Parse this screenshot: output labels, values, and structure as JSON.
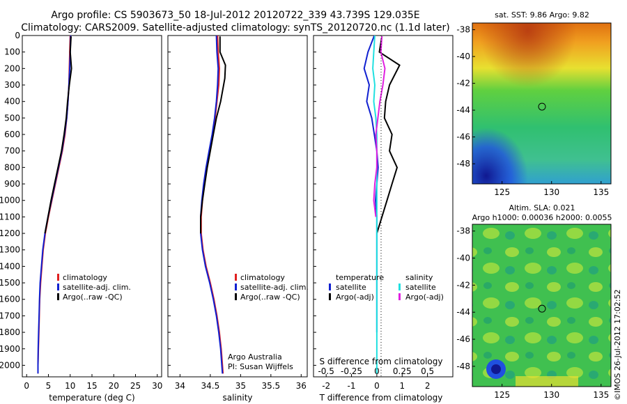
{
  "header": {
    "line1": "Argo profile: CS 5903673_50 18-Jul-2012 20120722_339 43.739S 129.035E",
    "line2": "Climatology: CARS2009. Satellite-adjusted climatology: synTS_20120720.nc (1.1d later)"
  },
  "colors": {
    "climatology": "#e02020",
    "satellite": "#1020d0",
    "argo": "#000000",
    "t_satellite": "#1020d0",
    "t_argo": "#000000",
    "s_satellite": "#20e0e0",
    "s_argo": "#e020e0"
  },
  "chart_data": [
    {
      "type": "line",
      "name": "temperature-profile",
      "xlabel": "temperature (deg C)",
      "ylabel": "",
      "xlim": [
        -1,
        31
      ],
      "ylim": [
        2070,
        0
      ],
      "xticks": [
        0,
        5,
        10,
        15,
        20,
        25,
        30
      ],
      "yticks": [
        0,
        100,
        200,
        300,
        400,
        500,
        600,
        700,
        800,
        900,
        1000,
        1100,
        1200,
        1300,
        1400,
        1500,
        1600,
        1700,
        1800,
        1900,
        2000
      ],
      "legend": [
        "climatology",
        "satellite-adj. clim.",
        "Argo(..raw -QC)"
      ],
      "series": [
        {
          "name": "climatology",
          "color_key": "climatology",
          "x": [
            10.0,
            9.9,
            9.8,
            9.7,
            9.5,
            9.2,
            8.8,
            8.2,
            7.4,
            6.6,
            5.8,
            5.0,
            4.3,
            3.8,
            3.5,
            3.2,
            3.0,
            2.9,
            2.8,
            2.7,
            2.6,
            2.6
          ],
          "y": [
            0,
            100,
            200,
            300,
            400,
            500,
            600,
            700,
            800,
            900,
            1000,
            1100,
            1200,
            1300,
            1400,
            1500,
            1600,
            1700,
            1800,
            1900,
            2000,
            2050
          ]
        },
        {
          "name": "satellite-adj. clim.",
          "color_key": "satellite",
          "x": [
            10.1,
            10.0,
            9.9,
            9.7,
            9.5,
            9.2,
            8.7,
            8.1,
            7.3,
            6.5,
            5.7,
            4.9,
            4.2,
            3.7,
            3.4,
            3.1,
            2.95,
            2.85,
            2.75,
            2.65,
            2.6,
            2.6
          ],
          "y": [
            0,
            100,
            200,
            300,
            400,
            500,
            600,
            700,
            800,
            900,
            1000,
            1100,
            1200,
            1300,
            1400,
            1500,
            1600,
            1700,
            1800,
            1900,
            2000,
            2050
          ]
        },
        {
          "name": "Argo(..raw -QC)",
          "color_key": "argo",
          "x": [
            10.2,
            10.0,
            10.3,
            9.8,
            9.4,
            9.1,
            8.6,
            8.0,
            7.2,
            6.4,
            5.6,
            4.9,
            4.2
          ],
          "y": [
            5,
            100,
            200,
            300,
            400,
            500,
            600,
            700,
            800,
            900,
            1000,
            1100,
            1200
          ]
        }
      ]
    },
    {
      "type": "line",
      "name": "salinity-profile",
      "xlabel": "salinity",
      "ylabel": "",
      "xlim": [
        33.8,
        36.1
      ],
      "ylim": [
        2070,
        0
      ],
      "xticks": [
        34,
        34.5,
        35,
        35.5,
        36
      ],
      "legend": [
        "climatology",
        "satellite-adj. clim.",
        "Argo(..raw -QC)"
      ],
      "annotation": [
        "Argo Australia",
        "PI: Susan Wijffels"
      ],
      "series": [
        {
          "name": "climatology",
          "color_key": "climatology",
          "x": [
            34.62,
            34.63,
            34.65,
            34.64,
            34.61,
            34.58,
            34.54,
            34.49,
            34.44,
            34.4,
            34.37,
            34.35,
            34.35,
            34.38,
            34.43,
            34.5,
            34.56,
            34.61,
            34.65,
            34.68,
            34.7,
            34.71
          ],
          "y": [
            0,
            100,
            200,
            300,
            400,
            500,
            600,
            700,
            800,
            900,
            1000,
            1100,
            1200,
            1300,
            1400,
            1500,
            1600,
            1700,
            1800,
            1900,
            2000,
            2050
          ]
        },
        {
          "name": "satellite-adj. clim.",
          "color_key": "satellite",
          "x": [
            34.6,
            34.61,
            34.63,
            34.62,
            34.6,
            34.57,
            34.53,
            34.48,
            34.43,
            34.39,
            34.36,
            34.34,
            34.34,
            34.37,
            34.42,
            34.49,
            34.55,
            34.6,
            34.64,
            34.67,
            34.69,
            34.7
          ],
          "y": [
            0,
            100,
            200,
            300,
            400,
            500,
            600,
            700,
            800,
            900,
            1000,
            1100,
            1200,
            1300,
            1400,
            1500,
            1600,
            1700,
            1800,
            1900,
            2000,
            2050
          ]
        },
        {
          "name": "Argo(..raw -QC)",
          "color_key": "argo",
          "x": [
            34.66,
            34.66,
            34.75,
            34.74,
            34.67,
            34.6,
            34.55,
            34.5,
            34.45,
            34.41,
            34.37,
            34.34,
            34.34
          ],
          "y": [
            5,
            100,
            180,
            260,
            400,
            500,
            600,
            700,
            800,
            900,
            1000,
            1100,
            1200
          ]
        }
      ]
    },
    {
      "type": "line",
      "name": "difference-profile",
      "xlabel": "T difference from climatology",
      "x2label": "S difference from climatology",
      "xlim": [
        -2.5,
        3
      ],
      "x2lim": [
        -0.625,
        0.75
      ],
      "ylim": [
        2070,
        0
      ],
      "xticks": [
        -2,
        -1,
        0,
        1,
        2
      ],
      "x2ticks": [
        -0.5,
        -0.25,
        0,
        0.25,
        0.5
      ],
      "legend_t": [
        "temperature",
        "satellite",
        "Argo(-adj)"
      ],
      "legend_s": [
        "salinity",
        "satellite",
        "Argo(-adj)"
      ],
      "series": [
        {
          "name": "temperature satellite",
          "color_key": "t_satellite",
          "x": [
            -0.1,
            -0.35,
            -0.5,
            -0.3,
            -0.4,
            -0.2,
            -0.1,
            0.0,
            0.05,
            0.0,
            -0.05,
            0.0,
            0.0,
            0.0,
            0.0,
            0.0,
            0.0,
            0.0,
            0.0
          ],
          "y": [
            0,
            100,
            200,
            300,
            400,
            500,
            600,
            700,
            800,
            900,
            1000,
            1100,
            1200,
            1300,
            1400,
            1500,
            1600,
            1700,
            1800
          ]
        },
        {
          "name": "temperature Argo(-adj)",
          "color_key": "t_argo",
          "x": [
            0.2,
            0.1,
            0.9,
            0.5,
            0.35,
            0.3,
            0.6,
            0.5,
            0.8,
            0.6,
            0.4,
            0.2,
            0.0
          ],
          "y": [
            5,
            100,
            180,
            300,
            400,
            500,
            600,
            700,
            800,
            900,
            1000,
            1100,
            1200
          ]
        },
        {
          "name": "salinity satellite",
          "color_key": "s_satellite",
          "x": [
            -0.02,
            -0.03,
            -0.04,
            -0.02,
            -0.03,
            -0.01,
            0.0,
            0.0,
            0.0,
            0.0,
            0.0,
            0.0,
            0.0,
            0.0,
            0.0,
            0.0,
            0.0,
            0.0,
            0.0,
            0.0,
            0.0
          ],
          "y": [
            0,
            100,
            200,
            300,
            400,
            500,
            600,
            700,
            800,
            900,
            1000,
            1100,
            1200,
            1300,
            1400,
            1500,
            1600,
            1700,
            1800,
            1900,
            2050
          ]
        },
        {
          "name": "salinity Argo(-adj)",
          "color_key": "s_argo",
          "x": [
            0.05,
            0.04,
            0.08,
            0.06,
            0.03,
            0.01,
            -0.01,
            0.0,
            0.0,
            -0.02,
            -0.03,
            -0.01
          ],
          "y": [
            5,
            100,
            200,
            300,
            400,
            500,
            600,
            700,
            800,
            900,
            1000,
            1100
          ]
        }
      ]
    },
    {
      "type": "heatmap",
      "name": "sst-map",
      "title": "sat. SST: 9.86 Argo: 9.82",
      "xlim": [
        122,
        136
      ],
      "ylim": [
        -49.5,
        -37.5
      ],
      "xticks": [
        125,
        130,
        135
      ],
      "yticks": [
        -38,
        -40,
        -42,
        -44,
        -46,
        -48
      ],
      "marker": {
        "lon": 129.035,
        "lat": -43.739
      }
    },
    {
      "type": "heatmap",
      "name": "sla-map",
      "title": "Altim. SLA: 0.021",
      "subtitle": "Argo h1000: 0.00036 h2000: 0.0055",
      "xlim": [
        122,
        136
      ],
      "ylim": [
        -49.5,
        -37.5
      ],
      "xticks": [
        125,
        130,
        135
      ],
      "yticks": [
        -38,
        -40,
        -42,
        -44,
        -46,
        -48
      ],
      "marker": {
        "lon": 129.035,
        "lat": -43.739
      }
    }
  ],
  "footer_stamp": "©IMOS 26-Jul-2012 17:02:52"
}
